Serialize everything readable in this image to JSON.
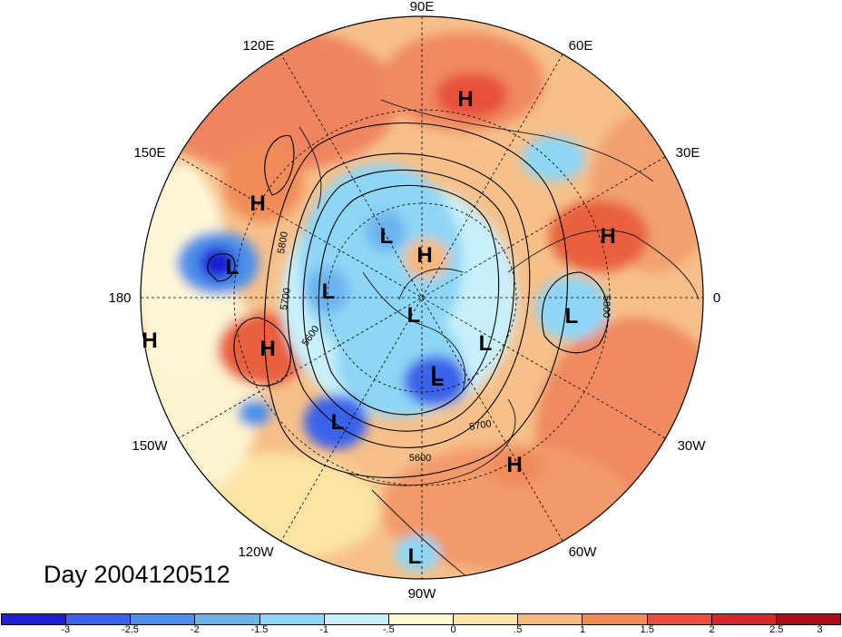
{
  "map": {
    "longitude_labels": [
      "90E",
      "60E",
      "30E",
      "0",
      "30W",
      "60W",
      "90W",
      "120W",
      "150W",
      "180",
      "150E",
      "120E"
    ],
    "contour_labels": [
      "5800",
      "5700",
      "5600",
      "5800",
      "5700",
      "5600"
    ],
    "pressure_centers": [
      {
        "kind": "H",
        "label": "H"
      },
      {
        "kind": "H",
        "label": "H"
      },
      {
        "kind": "L",
        "label": "L"
      },
      {
        "kind": "L",
        "label": "L"
      },
      {
        "kind": "H",
        "label": "H"
      },
      {
        "kind": "L",
        "label": "L"
      },
      {
        "kind": "L",
        "label": "L"
      },
      {
        "kind": "L",
        "label": "L"
      },
      {
        "kind": "H",
        "label": "H"
      },
      {
        "kind": "L",
        "label": "L"
      },
      {
        "kind": "H",
        "label": "H"
      },
      {
        "kind": "L",
        "label": "L"
      },
      {
        "kind": "H",
        "label": "H"
      },
      {
        "kind": "L",
        "label": "L"
      },
      {
        "kind": "L",
        "label": "L"
      },
      {
        "kind": "H",
        "label": "H"
      },
      {
        "kind": "L",
        "label": "L"
      }
    ],
    "date_label": "Day 2004120512"
  },
  "colorbar": {
    "colors": [
      "#1f1fd6",
      "#3b62e8",
      "#4c8fe8",
      "#6cb4ee",
      "#8ed6f5",
      "#c8f0fb",
      "#fdfbd7",
      "#fbe4a6",
      "#f7b87c",
      "#f08c5a",
      "#e8503e",
      "#d42a2a",
      "#a50f15"
    ],
    "ticks": [
      "-3",
      "-2.5",
      "-2",
      "-1.5",
      "-1",
      "-.5",
      "0",
      ".5",
      "1",
      "1.5",
      "2",
      "2.5",
      "3"
    ]
  }
}
